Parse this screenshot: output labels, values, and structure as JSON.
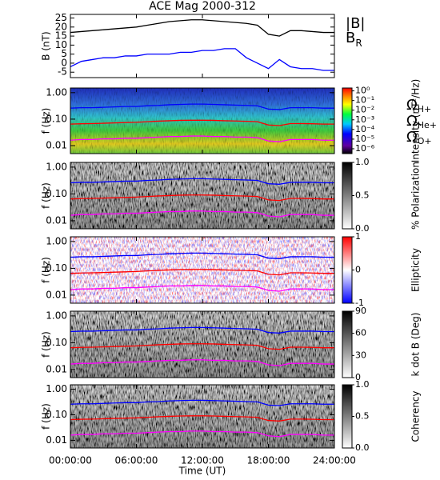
{
  "chart_data": [
    {
      "type": "line",
      "title": "ACE Mag 2000-312",
      "ylabel": "B (nT)",
      "xlabel": "Time (UT)",
      "x": [
        0,
        1,
        2,
        3,
        4,
        5,
        6,
        7,
        8,
        9,
        10,
        11,
        12,
        13,
        14,
        15,
        16,
        17,
        18,
        19,
        20,
        21,
        22,
        23,
        24
      ],
      "xlim": [
        0,
        24
      ],
      "xticks": [
        {
          "value": 0,
          "label": "00:00:00"
        },
        {
          "value": 6,
          "label": "06:00:00"
        },
        {
          "value": 12,
          "label": "12:00:00"
        },
        {
          "value": 18,
          "label": "18:00:00"
        },
        {
          "value": 24,
          "label": "24:00:00"
        }
      ],
      "ylim": [
        -8,
        27
      ],
      "yticks": [
        -5,
        0,
        5,
        10,
        15,
        20,
        25
      ],
      "series": [
        {
          "name": "|B|",
          "color": "#000000",
          "values": [
            17,
            17.5,
            18,
            18.5,
            19,
            19.5,
            20,
            21,
            22,
            23,
            23.5,
            24,
            24,
            23.5,
            23,
            22.5,
            22,
            21,
            16,
            15,
            18,
            18,
            17.5,
            17,
            17
          ]
        },
        {
          "name": "BR",
          "color": "#0000ff",
          "values": [
            -2,
            1,
            2,
            3,
            3,
            4,
            4,
            5,
            5,
            5,
            6,
            6,
            7,
            7,
            8,
            8,
            3,
            0,
            -3,
            2,
            -2,
            -3,
            -3,
            -4,
            -4
          ]
        }
      ]
    },
    {
      "type": "spectrogram",
      "ylabel": "f (Hz)",
      "log_y": true,
      "ylim": [
        0.005,
        1.5
      ],
      "yticks": [
        {
          "value": 1,
          "label": "1.00"
        },
        {
          "value": 0.1,
          "label": "0.10"
        },
        {
          "value": 0.01,
          "label": "0.01"
        }
      ],
      "colormap": "rainbow",
      "colorbar": {
        "label": "Intensity (nT²/Hz)",
        "lim": [
          -6.5,
          0.3
        ],
        "ticks": [
          {
            "value": 0,
            "label": "10⁰"
          },
          {
            "value": -1,
            "label": "10⁻¹"
          },
          {
            "value": -2,
            "label": "10⁻²"
          },
          {
            "value": -3,
            "label": "10⁻³"
          },
          {
            "value": -4,
            "label": "10⁻⁴"
          },
          {
            "value": -5,
            "label": "10⁻⁵"
          },
          {
            "value": -6,
            "label": "10⁻⁶"
          }
        ]
      },
      "series": [
        {
          "name": "ΩH+",
          "color": "#0000ff",
          "values": [
            0.26,
            0.27,
            0.27,
            0.28,
            0.29,
            0.3,
            0.3,
            0.32,
            0.33,
            0.35,
            0.36,
            0.37,
            0.37,
            0.36,
            0.35,
            0.34,
            0.33,
            0.32,
            0.24,
            0.23,
            0.27,
            0.27,
            0.27,
            0.26,
            0.26
          ]
        },
        {
          "name": "ΩHe+",
          "color": "#ff0000",
          "values": [
            0.065,
            0.067,
            0.068,
            0.07,
            0.072,
            0.074,
            0.076,
            0.08,
            0.084,
            0.087,
            0.09,
            0.091,
            0.091,
            0.09,
            0.087,
            0.085,
            0.083,
            0.08,
            0.06,
            0.057,
            0.068,
            0.068,
            0.067,
            0.065,
            0.065
          ]
        },
        {
          "name": "ΩO+",
          "color": "#ff00ff",
          "values": [
            0.016,
            0.017,
            0.017,
            0.018,
            0.018,
            0.019,
            0.019,
            0.02,
            0.021,
            0.022,
            0.022,
            0.023,
            0.023,
            0.022,
            0.022,
            0.021,
            0.021,
            0.02,
            0.015,
            0.014,
            0.017,
            0.017,
            0.017,
            0.016,
            0.016
          ]
        }
      ]
    },
    {
      "type": "spectrogram",
      "ylabel": "f (Hz)",
      "log_y": true,
      "ylim": [
        0.005,
        1.5
      ],
      "yticks": [
        {
          "value": 1,
          "label": "1.00"
        },
        {
          "value": 0.1,
          "label": "0.10"
        },
        {
          "value": 0.01,
          "label": "0.01"
        }
      ],
      "colormap": "gray",
      "colorbar": {
        "label": "% Polarization",
        "lim": [
          0,
          1
        ],
        "ticks": [
          {
            "value": 0,
            "label": "0.0"
          },
          {
            "value": 0.5,
            "label": "0.5"
          },
          {
            "value": 1,
            "label": "1.0"
          }
        ]
      }
    },
    {
      "type": "spectrogram",
      "ylabel": "f (Hz)",
      "log_y": true,
      "ylim": [
        0.005,
        1.5
      ],
      "yticks": [
        {
          "value": 1,
          "label": "1.00"
        },
        {
          "value": 0.1,
          "label": "0.10"
        },
        {
          "value": 0.01,
          "label": "0.01"
        }
      ],
      "colormap": "bwr",
      "colorbar": {
        "label": "Ellipticity",
        "lim": [
          -1,
          1
        ],
        "ticks": [
          -1,
          0,
          1
        ]
      }
    },
    {
      "type": "spectrogram",
      "ylabel": "f (Hz)",
      "log_y": true,
      "ylim": [
        0.005,
        1.5
      ],
      "yticks": [
        {
          "value": 1,
          "label": "1.00"
        },
        {
          "value": 0.1,
          "label": "0.10"
        },
        {
          "value": 0.01,
          "label": "0.01"
        }
      ],
      "colormap": "gray",
      "colorbar": {
        "label": "k dot B (Deg)",
        "lim": [
          0,
          90
        ],
        "ticks": [
          0,
          30,
          60,
          90
        ]
      }
    },
    {
      "type": "spectrogram",
      "ylabel": "f (Hz)",
      "log_y": true,
      "ylim": [
        0.005,
        1.5
      ],
      "yticks": [
        {
          "value": 1,
          "label": "1.00"
        },
        {
          "value": 0.1,
          "label": "0.10"
        },
        {
          "value": 0.01,
          "label": "0.01"
        }
      ],
      "colormap": "gray",
      "colorbar": {
        "label": "Coherency",
        "lim": [
          0,
          1
        ],
        "ticks": [
          {
            "value": 0,
            "label": "0.0"
          },
          {
            "value": 0.5,
            "label": "0.5"
          },
          {
            "value": 1,
            "label": "1.0"
          }
        ]
      }
    }
  ]
}
